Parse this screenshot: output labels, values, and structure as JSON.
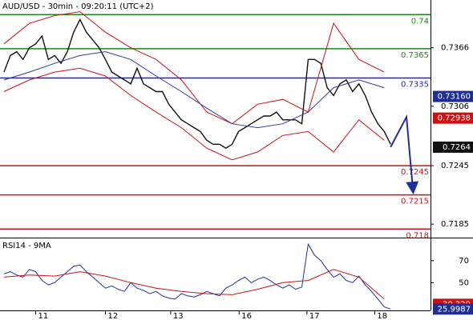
{
  "chart_data": [
    {
      "type": "line",
      "title": "AUD/USD - 30min - 09:20:11 (UTC+2)",
      "xlim": [
        -0.63,
        67.3
      ],
      "ylim": [
        0.7172,
        0.7415
      ],
      "yticks": [
        0.7366,
        0.7306,
        0.7245,
        0.7185
      ],
      "xticks": [
        {
          "value": 5,
          "label": "11"
        },
        {
          "value": 16,
          "label": "12"
        },
        {
          "value": 26.3,
          "label": "13"
        },
        {
          "value": 37.1,
          "label": "16"
        },
        {
          "value": 47.8,
          "label": "17"
        },
        {
          "value": 58.5,
          "label": "18"
        }
      ],
      "levels": [
        {
          "value": 0.74,
          "color": "#1a8a1a"
        },
        {
          "value": 0.7365,
          "color": "#1a8a1a"
        },
        {
          "value": 0.7335,
          "color": "#1f1fd0"
        },
        {
          "value": 0.7245,
          "color": "#d01010"
        },
        {
          "value": 0.7215,
          "color": "#d01010"
        },
        {
          "value": 0.718,
          "color": "#d01010"
        }
      ],
      "price_tags": [
        {
          "value": 0.7316,
          "label": "0.73160",
          "color": "#1f2f8f"
        },
        {
          "value": 0.72938,
          "label": "0.72938",
          "color": "#d01010"
        },
        {
          "value": 0.7264,
          "label": "0.7264",
          "color": "#111111"
        }
      ],
      "series": [
        {
          "color": "#111111",
          "width": 1.4,
          "x": [
            0,
            1,
            2,
            3,
            4,
            5,
            6,
            7,
            8,
            9,
            10,
            11,
            12,
            13,
            14,
            15,
            16,
            17,
            18,
            19,
            20,
            21,
            22,
            23,
            24,
            25,
            26,
            27,
            28,
            29,
            30,
            31,
            32,
            33,
            34,
            35,
            36,
            37,
            38,
            39,
            40,
            41,
            42,
            43,
            44,
            45,
            46,
            47,
            48,
            49,
            50,
            51,
            52,
            53,
            54,
            55,
            56,
            57,
            58,
            59,
            60,
            61
          ],
          "values": [
            0.7341,
            0.7358,
            0.7362,
            0.7354,
            0.7366,
            0.737,
            0.7378,
            0.7354,
            0.7358,
            0.735,
            0.7362,
            0.7382,
            0.7395,
            0.7382,
            0.7374,
            0.7366,
            0.7354,
            0.7341,
            0.7337,
            0.7333,
            0.7329,
            0.7345,
            0.7329,
            0.7325,
            0.7321,
            0.7321,
            0.7308,
            0.73,
            0.7292,
            0.7288,
            0.7284,
            0.728,
            0.7271,
            0.7267,
            0.7267,
            0.7263,
            0.7267,
            0.728,
            0.7284,
            0.7288,
            0.7292,
            0.7296,
            0.7296,
            0.73,
            0.7292,
            0.7292,
            0.7292,
            0.7288,
            0.7354,
            0.7354,
            0.735,
            0.7325,
            0.7317,
            0.7329,
            0.7333,
            0.7321,
            0.7329,
            0.7317,
            0.73,
            0.7288,
            0.728,
            0.7267
          ]
        },
        {
          "color": "#c81414",
          "width": 1,
          "x": [
            0,
            4,
            8,
            12,
            16,
            20,
            24,
            28,
            32,
            36,
            40,
            44,
            48,
            52,
            56,
            60
          ],
          "values": [
            0.737,
            0.7391,
            0.7399,
            0.7403,
            0.7382,
            0.7366,
            0.7354,
            0.7333,
            0.73,
            0.7288,
            0.7308,
            0.7313,
            0.73,
            0.7391,
            0.7354,
            0.7341
          ]
        },
        {
          "color": "#c81414",
          "width": 1,
          "x": [
            0,
            4,
            8,
            12,
            16,
            20,
            24,
            28,
            32,
            36,
            40,
            44,
            48,
            52,
            56,
            60
          ],
          "values": [
            0.7321,
            0.7333,
            0.7341,
            0.7345,
            0.7337,
            0.7317,
            0.73,
            0.7284,
            0.7263,
            0.7251,
            0.7259,
            0.7276,
            0.728,
            0.7259,
            0.7292,
            0.7271
          ]
        },
        {
          "color": "#2a3aa0",
          "width": 1,
          "x": [
            0,
            4,
            8,
            12,
            16,
            20,
            24,
            28,
            32,
            36,
            40,
            44,
            48,
            52,
            56,
            60
          ],
          "values": [
            0.7333,
            0.7341,
            0.735,
            0.7358,
            0.7362,
            0.7354,
            0.7337,
            0.7321,
            0.7304,
            0.7288,
            0.7284,
            0.7288,
            0.73,
            0.7325,
            0.7333,
            0.7325
          ]
        },
        {
          "color": "#1f2fa0",
          "width": 2,
          "arrow": true,
          "x": [
            61,
            63.5,
            64.5
          ],
          "values": [
            0.7264,
            0.7295,
            0.7222
          ]
        }
      ]
    },
    {
      "type": "line",
      "title": "RSI14 - 9MA",
      "xlim": [
        -0.63,
        67.3
      ],
      "ylim": [
        25.5,
        89.5
      ],
      "yticks": [
        70,
        50
      ],
      "price_tags": [
        {
          "value": 30.329,
          "label": "30.329",
          "color": "#d01010"
        },
        {
          "value": 25.9987,
          "label": "25.9987",
          "color": "#1f2f8f"
        }
      ],
      "series": [
        {
          "color": "#1f2fa0",
          "width": 1,
          "x": [
            0,
            1,
            2,
            3,
            4,
            5,
            6,
            7,
            8,
            9,
            10,
            11,
            12,
            13,
            14,
            15,
            16,
            17,
            18,
            19,
            20,
            21,
            22,
            23,
            24,
            25,
            26,
            27,
            28,
            29,
            30,
            31,
            32,
            33,
            34,
            35,
            36,
            37,
            38,
            39,
            40,
            41,
            42,
            43,
            44,
            45,
            46,
            47,
            48,
            49,
            50,
            51,
            52,
            53,
            54,
            55,
            56,
            57,
            58,
            59,
            60,
            61
          ],
          "values": [
            58,
            60,
            57,
            55,
            62,
            60,
            52,
            48,
            50,
            55,
            60,
            65,
            66,
            60,
            55,
            50,
            45,
            47,
            44,
            42,
            50,
            45,
            43,
            40,
            42,
            38,
            36,
            35,
            40,
            38,
            37,
            39,
            42,
            40,
            38,
            45,
            48,
            52,
            55,
            50,
            53,
            55,
            52,
            48,
            45,
            48,
            44,
            46,
            85,
            75,
            70,
            62,
            55,
            58,
            52,
            50,
            56,
            48,
            42,
            35,
            28,
            26
          ]
        },
        {
          "color": "#c81414",
          "width": 1,
          "x": [
            0,
            4,
            8,
            12,
            16,
            20,
            24,
            28,
            32,
            36,
            40,
            44,
            48,
            52,
            56,
            60
          ],
          "values": [
            55,
            57,
            56,
            60,
            56,
            50,
            45,
            42,
            40,
            39,
            44,
            50,
            52,
            62,
            55,
            35
          ]
        }
      ]
    }
  ]
}
